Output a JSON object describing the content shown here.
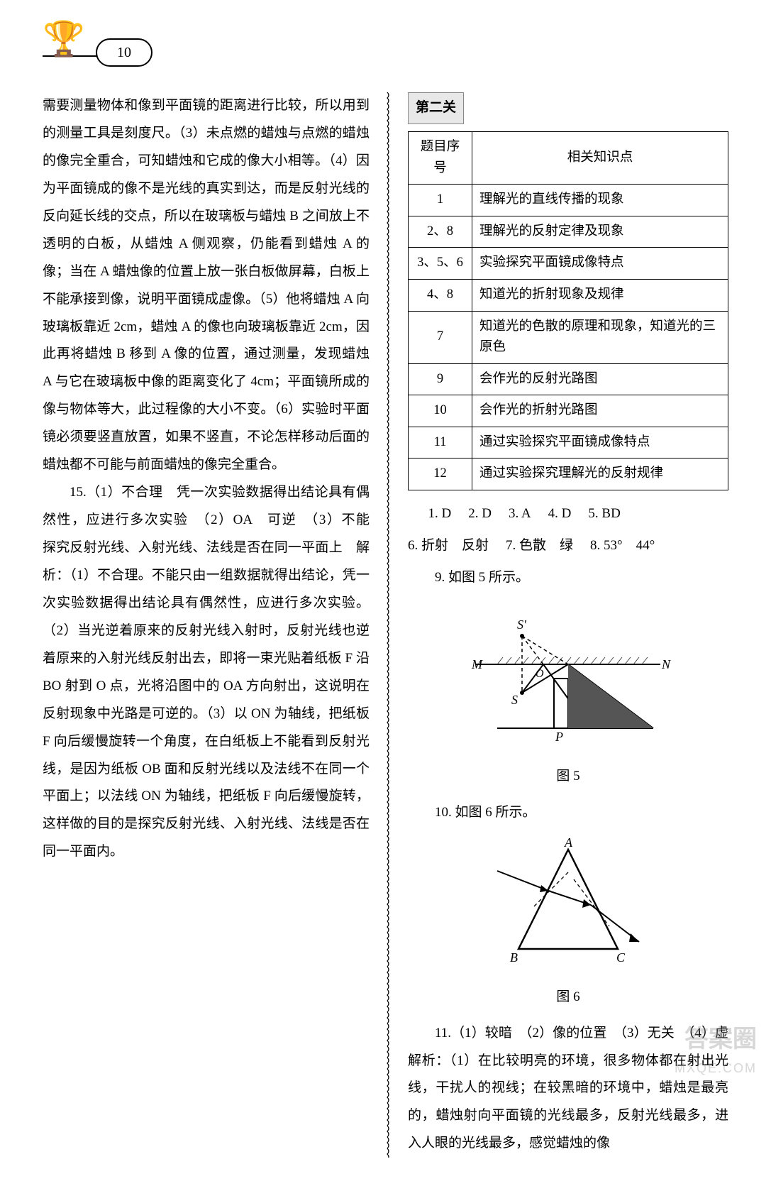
{
  "page_number": "10",
  "left": {
    "para1": "需要测量物体和像到平面镜的距离进行比较，所以用到的测量工具是刻度尺。（3）未点燃的蜡烛与点燃的蜡烛的像完全重合，可知蜡烛和它成的像大小相等。（4）因为平面镜成的像不是光线的真实到达，而是反射光线的反向延长线的交点，所以在玻璃板与蜡烛 B 之间放上不透明的白板，从蜡烛 A 侧观察，仍能看到蜡烛 A 的像；当在 A 蜡烛像的位置上放一张白板做屏幕，白板上不能承接到像，说明平面镜成虚像。（5）他将蜡烛 A 向玻璃板靠近 2cm，蜡烛 A 的像也向玻璃板靠近 2cm，因此再将蜡烛 B 移到 A 像的位置，通过测量，发现蜡烛 A 与它在玻璃板中像的距离变化了 4cm；平面镜所成的像与物体等大，此过程像的大小不变。（6）实验时平面镜必须要竖直放置，如果不竖直，不论怎样移动后面的蜡烛都不可能与前面蜡烛的像完全重合。",
    "para2": "15.（1）不合理　凭一次实验数据得出结论具有偶然性，应进行多次实验　（2）OA　可逆　（3）不能　探究反射光线、入射光线、法线是否在同一平面上　解析：（1）不合理。不能只由一组数据就得出结论，凭一次实验数据得出结论具有偶然性，应进行多次实验。（2）当光逆着原来的反射光线入射时，反射光线也逆着原来的入射光线反射出去，即将一束光贴着纸板 F 沿 BO 射到 O 点，光将沿图中的 OA 方向射出，这说明在反射现象中光路是可逆的。（3）以 ON 为轴线，把纸板 F 向后缓慢旋转一个角度，在白纸板上不能看到反射光线，是因为纸板 OB 面和反射光线以及法线不在同一个平面上；以法线 ON 为轴线，把纸板 F 向后缓慢旋转，这样做的目的是探究反射光线、入射光线、法线是否在同一平面内。"
  },
  "right": {
    "section_tag": "第二关",
    "table": {
      "headers": [
        "题目序号",
        "相关知识点"
      ],
      "rows": [
        [
          "1",
          "理解光的直线传播的现象"
        ],
        [
          "2、8",
          "理解光的反射定律及现象"
        ],
        [
          "3、5、6",
          "实验探究平面镜成像特点"
        ],
        [
          "4、8",
          "知道光的折射现象及规律"
        ],
        [
          "7",
          "知道光的色散的原理和现象，知道光的三原色"
        ],
        [
          "9",
          "会作光的反射光路图"
        ],
        [
          "10",
          "会作光的折射光路图"
        ],
        [
          "11",
          "通过实验探究平面镜成像特点"
        ],
        [
          "12",
          "通过实验探究理解光的反射规律"
        ]
      ]
    },
    "answers_row1": [
      {
        "num": "1.",
        "val": "D"
      },
      {
        "num": "2.",
        "val": "D"
      },
      {
        "num": "3.",
        "val": "A"
      },
      {
        "num": "4.",
        "val": "D"
      },
      {
        "num": "5.",
        "val": "BD"
      }
    ],
    "answers_row2": [
      {
        "num": "6.",
        "val": "折射　反射"
      },
      {
        "num": "7.",
        "val": "色散　绿"
      },
      {
        "num": "8.",
        "val": "53°　44°"
      }
    ],
    "q9_text": "9. 如图 5 所示。",
    "fig5_caption": "图 5",
    "fig5_labels": {
      "S_prime": "S′",
      "M": "M",
      "O": "O",
      "S": "S",
      "P": "P",
      "N": "N"
    },
    "q10_text": "10. 如图 6 所示。",
    "fig6_caption": "图 6",
    "fig6_labels": {
      "A": "A",
      "B": "B",
      "C": "C"
    },
    "q11_text": "11.（1）较暗　（2）像的位置　（3）无关　（4）虚　　解析：（1）在比较明亮的环境，很多物体都在射出光线，干扰人的视线；在较黑暗的环境中，蜡烛是最亮的，蜡烛射向平面镜的光线最多，反射光线最多，进入人眼的光线最多，感觉蜡烛的像"
  },
  "watermark_main": "答案圈",
  "watermark_sub": "MXQE.COM",
  "colors": {
    "text": "#000000",
    "background": "#ffffff",
    "shadow_fill": "#555555",
    "hatch": "#444444",
    "watermark": "rgba(140,140,140,0.35)"
  }
}
